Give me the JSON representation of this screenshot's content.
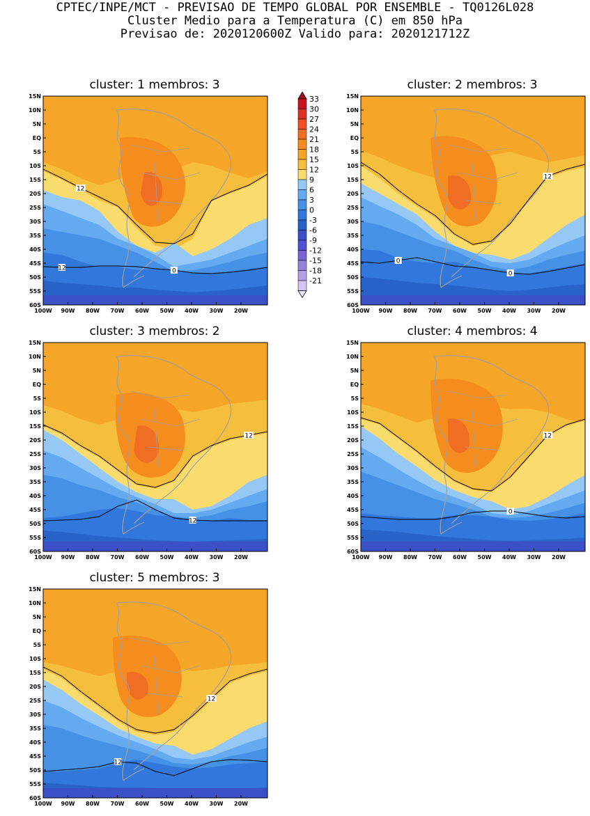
{
  "header": {
    "line1": "CPTEC/INPE/MCT - PREVISAO DE TEMPO GLOBAL POR ENSEMBLE - TQ0126L028",
    "line2": "Cluster Medio para a Temperatura (C) em 850 hPa",
    "line3": "Previsao de: 2020120600Z   Valido para: 2020121712Z"
  },
  "axes": {
    "lat_labels": [
      "15N",
      "10N",
      "5N",
      "EQ",
      "5S",
      "10S",
      "15S",
      "20S",
      "25S",
      "30S",
      "35S",
      "40S",
      "45S",
      "50S",
      "55S",
      "60S"
    ],
    "lon_labels": [
      "100W",
      "90W",
      "80W",
      "70W",
      "60W",
      "50W",
      "40W",
      "30W",
      "20W"
    ]
  },
  "colorbar": {
    "labels": [
      "33",
      "30",
      "27",
      "24",
      "21",
      "18",
      "15",
      "12",
      "9",
      "6",
      "3",
      "0",
      "-3",
      "-6",
      "-9",
      "-12",
      "-15",
      "-18",
      "-21"
    ],
    "colors": [
      "#c8141e",
      "#dc3228",
      "#f05028",
      "#f06e23",
      "#f58c1e",
      "#f5a528",
      "#f5be3c",
      "#fadc6e",
      "#96c8f5",
      "#64aaf0",
      "#4691e6",
      "#3278dc",
      "#2864c8",
      "#3c50c8",
      "#5050d2",
      "#7864d2",
      "#9682dc",
      "#b4a0e6",
      "#d2c3f0"
    ]
  },
  "panels": [
    {
      "title": "cluster: 1   membros: 3",
      "contour_labels": [
        "12",
        "12",
        "0",
        "0"
      ]
    },
    {
      "title": "cluster: 2   membros: 3",
      "contour_labels": [
        "12",
        "0",
        "0"
      ]
    },
    {
      "title": "cluster: 3   membros: 2",
      "contour_labels": [
        "12",
        "12",
        "0"
      ]
    },
    {
      "title": "cluster: 4   membros: 4",
      "contour_labels": [
        "12",
        "0"
      ]
    },
    {
      "title": "cluster: 5   membros: 3",
      "contour_labels": [
        "12",
        "12",
        "0"
      ]
    }
  ]
}
